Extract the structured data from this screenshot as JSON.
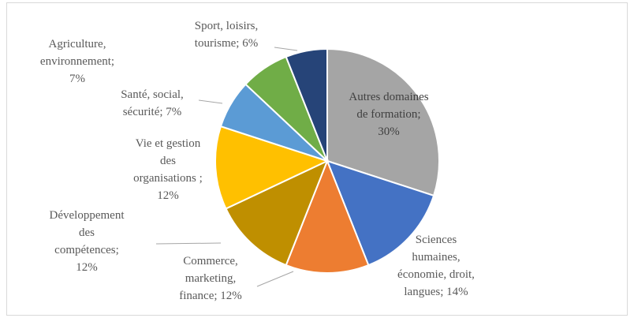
{
  "chart_data": {
    "type": "pie",
    "values": [
      30,
      14,
      12,
      12,
      12,
      7,
      7,
      6
    ],
    "value_labels": [
      "Autres domaines\nde formation;\n30%",
      "Sciences\nhumaines,\néconomie, droit,\nlangues; 14%",
      "Commerce,\nmarketing,\nfinance; 12%",
      "Développement\ndes\ncompétences;\n12%",
      "Vie et gestion\ndes\norganisations ;\n12%",
      "Santé, social,\nsécurité; 7%",
      "Agriculture,\nenvironnement;\n7%",
      "Sport, loisirs,\ntourisme; 6%"
    ],
    "colors": [
      "#a5a5a5",
      "#4472c4",
      "#ed7d31",
      "#bf8f00",
      "#ffc000",
      "#5b9bd5",
      "#70ad47",
      "#264478"
    ]
  }
}
